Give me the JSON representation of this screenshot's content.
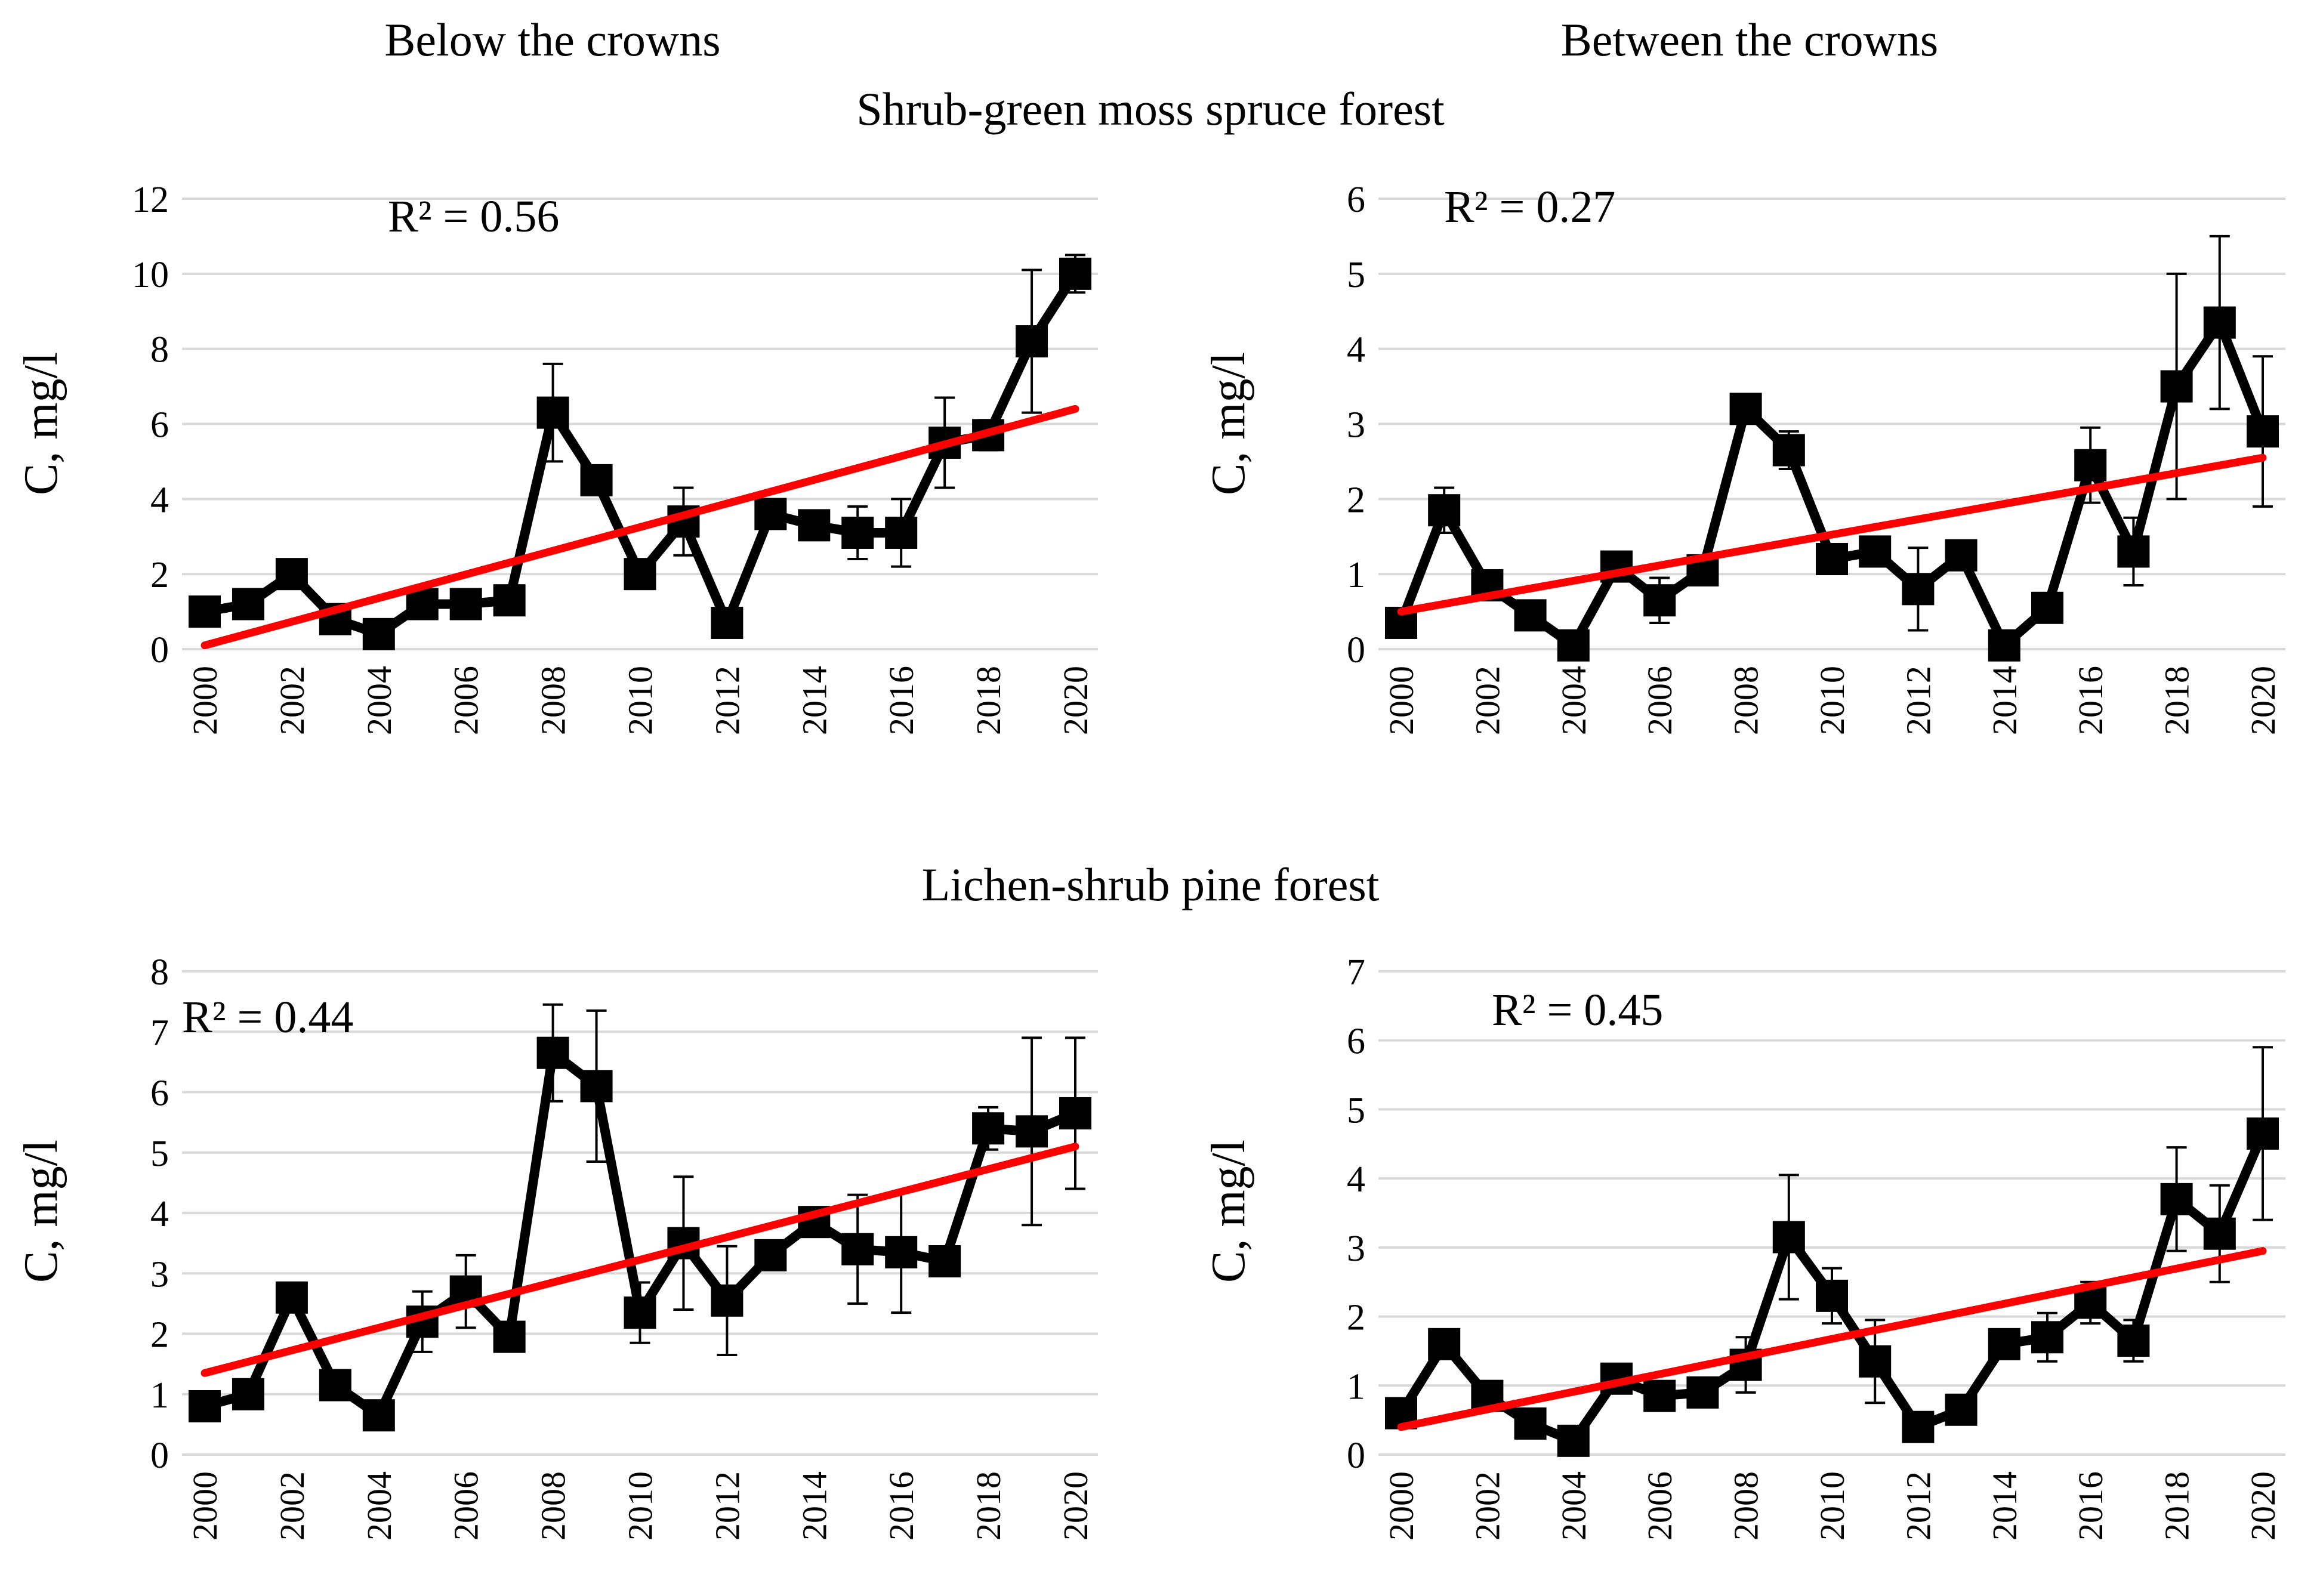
{
  "headings": {
    "col_left": "Below the crowns",
    "col_right": "Between the crowns",
    "row_top": "Shrub-green moss spruce forest",
    "row_bottom": "Lichen-shrub pine forest"
  },
  "colors": {
    "series": "#000000",
    "trend": "#ff0000",
    "grid": "#d9d9d9"
  },
  "chart_data": [
    {
      "id": "spruce-below",
      "type": "line",
      "title": "Below the crowns",
      "group": "Shrub-green moss spruce forest",
      "xlabel": "",
      "ylabel": "C, mg/l",
      "ylim": [
        0,
        12
      ],
      "yticks": [
        0,
        2,
        4,
        6,
        8,
        10,
        12
      ],
      "x": [
        2000,
        2001,
        2002,
        2003,
        2004,
        2005,
        2006,
        2007,
        2008,
        2009,
        2010,
        2011,
        2012,
        2013,
        2014,
        2015,
        2016,
        2017,
        2018,
        2019,
        2020
      ],
      "xticks": [
        2000,
        2002,
        2004,
        2006,
        2008,
        2010,
        2012,
        2014,
        2016,
        2018,
        2020
      ],
      "values": [
        1.0,
        1.2,
        2.0,
        0.8,
        0.4,
        1.2,
        1.2,
        1.3,
        6.3,
        4.5,
        2.0,
        3.4,
        0.7,
        3.6,
        3.3,
        3.1,
        3.1,
        5.5,
        5.7,
        8.2,
        10.0
      ],
      "errors": [
        0,
        0,
        0,
        0,
        0,
        0,
        0,
        0,
        1.3,
        0,
        0,
        0.9,
        0,
        0,
        0,
        0.7,
        0.9,
        1.2,
        0.4,
        1.9,
        0.5
      ],
      "trend": {
        "start": 0.1,
        "end": 6.4,
        "r2_label": "R² = 0.56"
      }
    },
    {
      "id": "spruce-between",
      "type": "line",
      "title": "Between the crowns",
      "group": "Shrub-green moss spruce forest",
      "xlabel": "",
      "ylabel": "C, mg/l",
      "ylim": [
        0,
        6
      ],
      "yticks": [
        0,
        1,
        2,
        3,
        4,
        5,
        6
      ],
      "x": [
        2000,
        2001,
        2002,
        2003,
        2004,
        2005,
        2006,
        2007,
        2008,
        2009,
        2010,
        2011,
        2012,
        2013,
        2014,
        2015,
        2016,
        2017,
        2018,
        2019,
        2020
      ],
      "xticks": [
        2000,
        2002,
        2004,
        2006,
        2008,
        2010,
        2012,
        2014,
        2016,
        2018,
        2020
      ],
      "values": [
        0.35,
        1.85,
        0.85,
        0.45,
        0.05,
        1.1,
        0.65,
        1.05,
        3.2,
        2.65,
        1.2,
        1.3,
        0.8,
        1.25,
        0.05,
        0.55,
        2.45,
        1.3,
        3.5,
        4.35,
        2.9
      ],
      "errors": [
        0,
        0.3,
        0,
        0,
        0,
        0,
        0.3,
        0,
        0,
        0.25,
        0,
        0,
        0.55,
        0,
        0,
        0,
        0.5,
        0.45,
        1.5,
        1.15,
        1.0
      ],
      "trend": {
        "start": 0.5,
        "end": 2.55,
        "r2_label": "R² = 0.27"
      }
    },
    {
      "id": "pine-below",
      "type": "line",
      "title": "Below the crowns",
      "group": "Lichen-shrub pine forest",
      "xlabel": "",
      "ylabel": "C, mg/l",
      "ylim": [
        0,
        8
      ],
      "yticks": [
        0,
        1,
        2,
        3,
        4,
        5,
        6,
        7,
        8
      ],
      "x": [
        2000,
        2001,
        2002,
        2003,
        2004,
        2005,
        2006,
        2007,
        2008,
        2009,
        2010,
        2011,
        2012,
        2013,
        2014,
        2015,
        2016,
        2017,
        2018,
        2019,
        2020
      ],
      "xticks": [
        2000,
        2002,
        2004,
        2006,
        2008,
        2010,
        2012,
        2014,
        2016,
        2018,
        2020
      ],
      "values": [
        0.8,
        1.0,
        2.6,
        1.15,
        0.65,
        2.2,
        2.7,
        1.95,
        6.65,
        6.1,
        2.35,
        3.5,
        2.55,
        3.3,
        3.85,
        3.4,
        3.35,
        3.2,
        5.4,
        5.35,
        5.65
      ],
      "errors": [
        0,
        0,
        0,
        0,
        0,
        0.5,
        0.6,
        0,
        0.8,
        1.25,
        0.5,
        1.1,
        0.9,
        0,
        0,
        0.9,
        1.0,
        0,
        0.35,
        1.55,
        1.25
      ],
      "trend": {
        "start": 1.35,
        "end": 5.1,
        "r2_label": "R² = 0.44"
      }
    },
    {
      "id": "pine-between",
      "type": "line",
      "title": "Between the crowns",
      "group": "Lichen-shrub pine forest",
      "xlabel": "",
      "ylabel": "C, mg/l",
      "ylim": [
        0,
        7
      ],
      "yticks": [
        0,
        1,
        2,
        3,
        4,
        5,
        6,
        7
      ],
      "x": [
        2000,
        2001,
        2002,
        2003,
        2004,
        2005,
        2006,
        2007,
        2008,
        2009,
        2010,
        2011,
        2012,
        2013,
        2014,
        2015,
        2016,
        2017,
        2018,
        2019,
        2020
      ],
      "xticks": [
        2000,
        2002,
        2004,
        2006,
        2008,
        2010,
        2012,
        2014,
        2016,
        2018,
        2020
      ],
      "values": [
        0.6,
        1.6,
        0.85,
        0.45,
        0.2,
        1.1,
        0.85,
        0.9,
        1.3,
        3.15,
        2.3,
        1.35,
        0.4,
        0.65,
        1.6,
        1.7,
        2.2,
        1.65,
        3.7,
        3.2,
        4.65
      ],
      "errors": [
        0,
        0,
        0,
        0,
        0,
        0,
        0,
        0,
        0.4,
        0.9,
        0.4,
        0.6,
        0,
        0,
        0,
        0.35,
        0.3,
        0.3,
        0.75,
        0.7,
        1.25
      ],
      "trend": {
        "start": 0.4,
        "end": 2.95,
        "r2_label": "R² = 0.45"
      }
    }
  ]
}
